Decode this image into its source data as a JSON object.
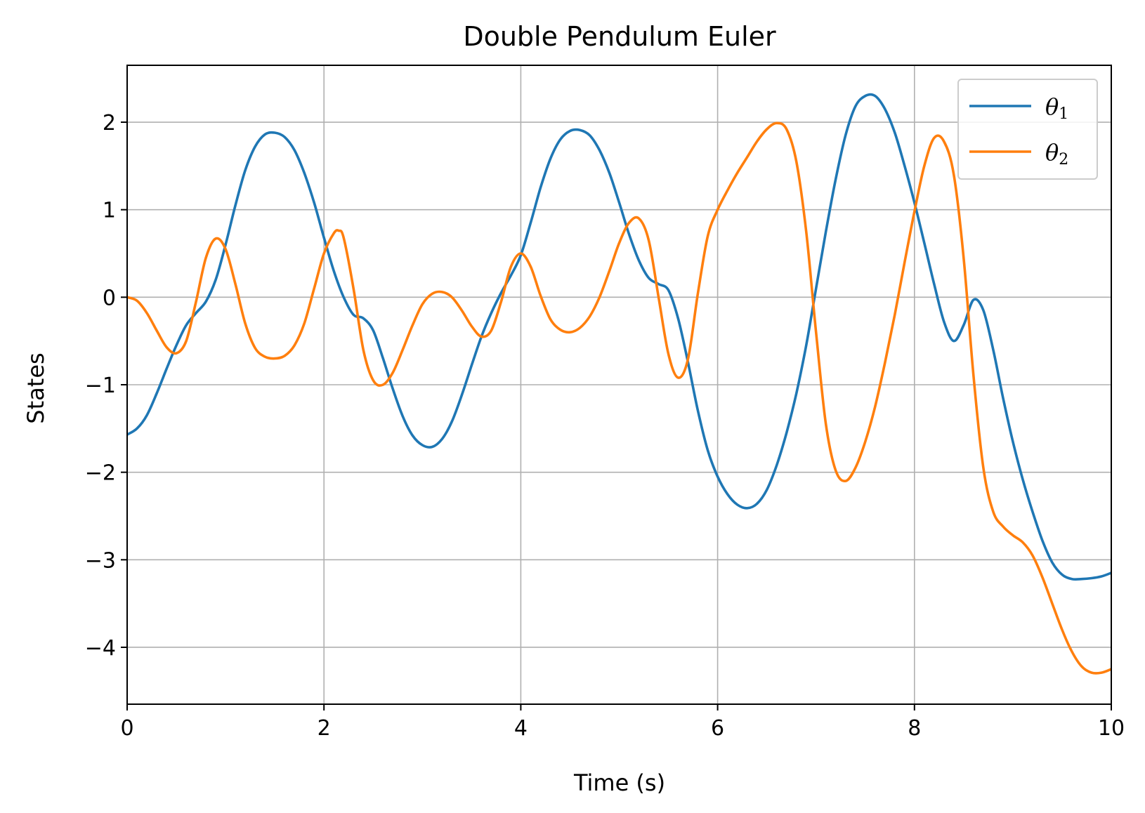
{
  "chart_data": {
    "type": "line",
    "title": "Double Pendulum Euler",
    "xlabel": "Time (s)",
    "ylabel": "States",
    "xlim": [
      0,
      10
    ],
    "ylim": [
      -4.65,
      2.65
    ],
    "x_ticks": [
      0,
      2,
      4,
      6,
      8,
      10
    ],
    "x_tick_labels": [
      "0",
      "2",
      "4",
      "6",
      "8",
      "10"
    ],
    "y_ticks": [
      -4,
      -3,
      -2,
      -1,
      0,
      1,
      2
    ],
    "y_tick_labels": [
      "−4",
      "−3",
      "−2",
      "−1",
      "0",
      "1",
      "2"
    ],
    "grid": true,
    "legend": {
      "placement": "top-right"
    },
    "series": [
      {
        "name": "θ1",
        "legend_symbol": "θ",
        "legend_sub": "1",
        "color": "#1f77b4",
        "points": [
          [
            0,
            -1.57
          ],
          [
            0.1,
            -1.5
          ],
          [
            0.2,
            -1.35
          ],
          [
            0.3,
            -1.1
          ],
          [
            0.4,
            -0.82
          ],
          [
            0.5,
            -0.55
          ],
          [
            0.6,
            -0.32
          ],
          [
            0.7,
            -0.18
          ],
          [
            0.8,
            -0.05
          ],
          [
            0.9,
            0.2
          ],
          [
            1.0,
            0.6
          ],
          [
            1.1,
            1.05
          ],
          [
            1.2,
            1.45
          ],
          [
            1.3,
            1.72
          ],
          [
            1.4,
            1.86
          ],
          [
            1.5,
            1.88
          ],
          [
            1.6,
            1.83
          ],
          [
            1.7,
            1.68
          ],
          [
            1.8,
            1.42
          ],
          [
            1.9,
            1.08
          ],
          [
            2.0,
            0.68
          ],
          [
            2.1,
            0.3
          ],
          [
            2.2,
            0.0
          ],
          [
            2.3,
            -0.2
          ],
          [
            2.4,
            -0.24
          ],
          [
            2.5,
            -0.38
          ],
          [
            2.6,
            -0.7
          ],
          [
            2.7,
            -1.05
          ],
          [
            2.8,
            -1.36
          ],
          [
            2.9,
            -1.58
          ],
          [
            3.0,
            -1.69
          ],
          [
            3.1,
            -1.71
          ],
          [
            3.2,
            -1.62
          ],
          [
            3.3,
            -1.42
          ],
          [
            3.4,
            -1.12
          ],
          [
            3.5,
            -0.78
          ],
          [
            3.6,
            -0.45
          ],
          [
            3.7,
            -0.18
          ],
          [
            3.8,
            0.05
          ],
          [
            3.9,
            0.25
          ],
          [
            4.0,
            0.48
          ],
          [
            4.1,
            0.85
          ],
          [
            4.2,
            1.25
          ],
          [
            4.3,
            1.58
          ],
          [
            4.4,
            1.8
          ],
          [
            4.5,
            1.9
          ],
          [
            4.6,
            1.91
          ],
          [
            4.7,
            1.85
          ],
          [
            4.8,
            1.68
          ],
          [
            4.9,
            1.42
          ],
          [
            5.0,
            1.08
          ],
          [
            5.1,
            0.72
          ],
          [
            5.2,
            0.42
          ],
          [
            5.3,
            0.22
          ],
          [
            5.4,
            0.15
          ],
          [
            5.5,
            0.08
          ],
          [
            5.6,
            -0.25
          ],
          [
            5.7,
            -0.75
          ],
          [
            5.8,
            -1.3
          ],
          [
            5.9,
            -1.75
          ],
          [
            6.0,
            -2.05
          ],
          [
            6.1,
            -2.25
          ],
          [
            6.2,
            -2.37
          ],
          [
            6.3,
            -2.41
          ],
          [
            6.4,
            -2.36
          ],
          [
            6.5,
            -2.2
          ],
          [
            6.6,
            -1.92
          ],
          [
            6.7,
            -1.55
          ],
          [
            6.8,
            -1.1
          ],
          [
            6.9,
            -0.55
          ],
          [
            7.0,
            0.1
          ],
          [
            7.1,
            0.75
          ],
          [
            7.2,
            1.35
          ],
          [
            7.3,
            1.85
          ],
          [
            7.4,
            2.18
          ],
          [
            7.5,
            2.3
          ],
          [
            7.6,
            2.3
          ],
          [
            7.7,
            2.15
          ],
          [
            7.8,
            1.88
          ],
          [
            7.9,
            1.5
          ],
          [
            8.0,
            1.08
          ],
          [
            8.1,
            0.62
          ],
          [
            8.2,
            0.15
          ],
          [
            8.3,
            -0.28
          ],
          [
            8.4,
            -0.5
          ],
          [
            8.5,
            -0.32
          ],
          [
            8.6,
            -0.03
          ],
          [
            8.7,
            -0.15
          ],
          [
            8.8,
            -0.6
          ],
          [
            8.9,
            -1.15
          ],
          [
            9.0,
            -1.65
          ],
          [
            9.1,
            -2.08
          ],
          [
            9.2,
            -2.45
          ],
          [
            9.3,
            -2.78
          ],
          [
            9.4,
            -3.03
          ],
          [
            9.5,
            -3.17
          ],
          [
            9.6,
            -3.22
          ],
          [
            9.7,
            -3.22
          ],
          [
            9.8,
            -3.21
          ],
          [
            9.9,
            -3.19
          ],
          [
            10.0,
            -3.15
          ]
        ]
      },
      {
        "name": "θ2",
        "legend_symbol": "θ",
        "legend_sub": "2",
        "color": "#ff7f0e",
        "points": [
          [
            0,
            0.0
          ],
          [
            0.1,
            -0.04
          ],
          [
            0.2,
            -0.18
          ],
          [
            0.3,
            -0.38
          ],
          [
            0.4,
            -0.57
          ],
          [
            0.5,
            -0.64
          ],
          [
            0.6,
            -0.5
          ],
          [
            0.7,
            -0.05
          ],
          [
            0.8,
            0.45
          ],
          [
            0.9,
            0.67
          ],
          [
            1.0,
            0.55
          ],
          [
            1.1,
            0.15
          ],
          [
            1.2,
            -0.3
          ],
          [
            1.3,
            -0.58
          ],
          [
            1.4,
            -0.68
          ],
          [
            1.5,
            -0.7
          ],
          [
            1.6,
            -0.67
          ],
          [
            1.7,
            -0.55
          ],
          [
            1.8,
            -0.3
          ],
          [
            1.9,
            0.1
          ],
          [
            2.0,
            0.5
          ],
          [
            2.1,
            0.73
          ],
          [
            2.15,
            0.76
          ],
          [
            2.2,
            0.68
          ],
          [
            2.3,
            0.1
          ],
          [
            2.4,
            -0.6
          ],
          [
            2.5,
            -0.95
          ],
          [
            2.6,
            -1.0
          ],
          [
            2.7,
            -0.86
          ],
          [
            2.8,
            -0.6
          ],
          [
            2.9,
            -0.32
          ],
          [
            3.0,
            -0.08
          ],
          [
            3.1,
            0.04
          ],
          [
            3.2,
            0.06
          ],
          [
            3.3,
            0.0
          ],
          [
            3.4,
            -0.15
          ],
          [
            3.5,
            -0.33
          ],
          [
            3.6,
            -0.45
          ],
          [
            3.7,
            -0.38
          ],
          [
            3.8,
            -0.05
          ],
          [
            3.9,
            0.35
          ],
          [
            4.0,
            0.5
          ],
          [
            4.1,
            0.35
          ],
          [
            4.2,
            0.02
          ],
          [
            4.3,
            -0.25
          ],
          [
            4.4,
            -0.37
          ],
          [
            4.5,
            -0.4
          ],
          [
            4.6,
            -0.35
          ],
          [
            4.7,
            -0.22
          ],
          [
            4.8,
            0.0
          ],
          [
            4.9,
            0.3
          ],
          [
            5.0,
            0.62
          ],
          [
            5.1,
            0.85
          ],
          [
            5.2,
            0.9
          ],
          [
            5.3,
            0.65
          ],
          [
            5.4,
            0.0
          ],
          [
            5.5,
            -0.65
          ],
          [
            5.6,
            -0.92
          ],
          [
            5.7,
            -0.7
          ],
          [
            5.8,
            0.05
          ],
          [
            5.9,
            0.7
          ],
          [
            6.0,
            1.0
          ],
          [
            6.1,
            1.22
          ],
          [
            6.2,
            1.42
          ],
          [
            6.3,
            1.6
          ],
          [
            6.4,
            1.78
          ],
          [
            6.5,
            1.92
          ],
          [
            6.6,
            1.99
          ],
          [
            6.7,
            1.92
          ],
          [
            6.8,
            1.55
          ],
          [
            6.9,
            0.75
          ],
          [
            7.0,
            -0.4
          ],
          [
            7.1,
            -1.45
          ],
          [
            7.2,
            -1.98
          ],
          [
            7.3,
            -2.1
          ],
          [
            7.4,
            -1.95
          ],
          [
            7.5,
            -1.65
          ],
          [
            7.6,
            -1.25
          ],
          [
            7.7,
            -0.75
          ],
          [
            7.8,
            -0.2
          ],
          [
            7.9,
            0.4
          ],
          [
            8.0,
            0.98
          ],
          [
            8.1,
            1.5
          ],
          [
            8.2,
            1.82
          ],
          [
            8.3,
            1.78
          ],
          [
            8.4,
            1.4
          ],
          [
            8.5,
            0.45
          ],
          [
            8.6,
            -0.9
          ],
          [
            8.7,
            -1.95
          ],
          [
            8.8,
            -2.45
          ],
          [
            8.9,
            -2.62
          ],
          [
            9.0,
            -2.72
          ],
          [
            9.1,
            -2.8
          ],
          [
            9.2,
            -2.95
          ],
          [
            9.3,
            -3.2
          ],
          [
            9.4,
            -3.5
          ],
          [
            9.5,
            -3.8
          ],
          [
            9.6,
            -4.05
          ],
          [
            9.7,
            -4.22
          ],
          [
            9.8,
            -4.29
          ],
          [
            9.9,
            -4.29
          ],
          [
            10.0,
            -4.25
          ]
        ]
      }
    ]
  }
}
